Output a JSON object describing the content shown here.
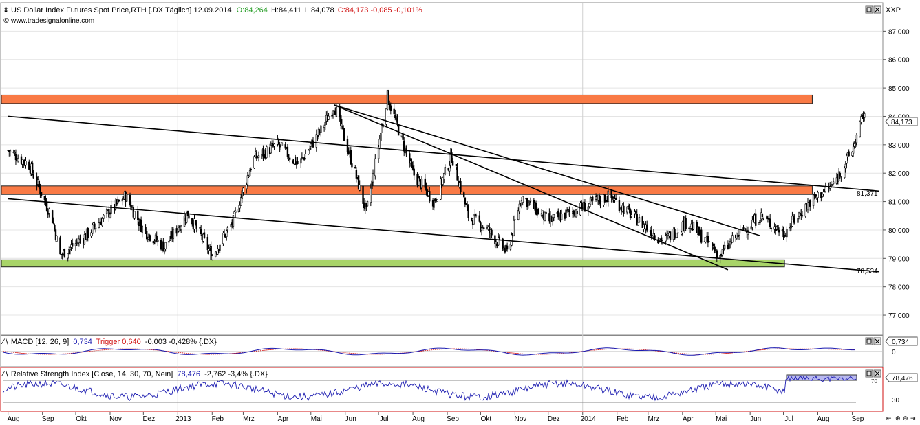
{
  "main_panel": {
    "title": "US Dollar Index Futures Spot Price,RTH [.DX  Täglich] 12.09.2014",
    "open": "O:84,264",
    "high": "H:84,411",
    "low": "L:84,078",
    "close": "C:84,173 -0,085 -0,101%",
    "watermark": "www.tradesignalonline.com",
    "axis_label": "XXP",
    "last_price_label": "84,173",
    "line_label_upper": "81,371",
    "line_label_lower": "78,534"
  },
  "macd_panel": {
    "title_prefix": "MACD [12, 26, 9]",
    "macd_value": "0,734",
    "trigger_text": "Trigger 0,640",
    "rest": "-0,003 -0,428% {.DX}",
    "axis_value": "0,734",
    "zero_label": "0"
  },
  "rsi_panel": {
    "title_prefix": "Relative Strength Index [Close, 14, 30, 70, Nein]",
    "value": "78,476",
    "rest": "-2,762 -3,4% {.DX}",
    "axis_value": "78,476",
    "level_70": "70",
    "level_30": "30"
  },
  "colors": {
    "resistance_zone": "#f97a45",
    "support_zone": "#a8d468",
    "candles": "#000000",
    "macd_line": "#1a1ab0",
    "rsi_line": "#1a1ab0",
    "panel_border_red": "#d01010"
  },
  "chart_data": {
    "type": "candlestick",
    "title": "US Dollar Index Futures Spot Price,RTH [.DX  Täglich] 12.09.2014",
    "ylim": [
      76.3,
      88.0
    ],
    "y_ticks": [
      "77,000",
      "78,000",
      "79,000",
      "80,000",
      "81,000",
      "82,000",
      "83,000",
      "84,000",
      "85,000",
      "86,000",
      "87,000"
    ],
    "x_ticks": [
      "Aug",
      "Sep",
      "Okt",
      "Nov",
      "Dez",
      "2013",
      "Feb",
      "Mrz",
      "Apr",
      "Mai",
      "Jun",
      "Jul",
      "Aug",
      "Sep",
      "Okt",
      "Nov",
      "Dez",
      "2014",
      "Feb",
      "Mrz",
      "Apr",
      "Mai",
      "Jun",
      "Jul",
      "Aug",
      "Sep"
    ],
    "approx_close_path": [
      {
        "date": "2012-08-01",
        "value": 82.8
      },
      {
        "date": "2012-08-20",
        "value": 82.3
      },
      {
        "date": "2012-09-10",
        "value": 80.4
      },
      {
        "date": "2012-09-17",
        "value": 79.1
      },
      {
        "date": "2012-10-10",
        "value": 79.8
      },
      {
        "date": "2012-11-15",
        "value": 81.2
      },
      {
        "date": "2012-12-01",
        "value": 80.0
      },
      {
        "date": "2012-12-20",
        "value": 79.4
      },
      {
        "date": "2013-01-10",
        "value": 80.6
      },
      {
        "date": "2013-02-01",
        "value": 79.1
      },
      {
        "date": "2013-02-20",
        "value": 80.3
      },
      {
        "date": "2013-03-10",
        "value": 82.5
      },
      {
        "date": "2013-04-01",
        "value": 83.0
      },
      {
        "date": "2013-04-20",
        "value": 82.3
      },
      {
        "date": "2013-05-10",
        "value": 83.5
      },
      {
        "date": "2013-05-22",
        "value": 84.4
      },
      {
        "date": "2013-06-10",
        "value": 82.0
      },
      {
        "date": "2013-06-20",
        "value": 80.6
      },
      {
        "date": "2013-07-09",
        "value": 84.7
      },
      {
        "date": "2013-08-01",
        "value": 82.0
      },
      {
        "date": "2013-08-20",
        "value": 81.0
      },
      {
        "date": "2013-09-05",
        "value": 82.6
      },
      {
        "date": "2013-09-20",
        "value": 80.5
      },
      {
        "date": "2013-10-05",
        "value": 80.1
      },
      {
        "date": "2013-10-25",
        "value": 79.2
      },
      {
        "date": "2013-11-07",
        "value": 81.2
      },
      {
        "date": "2013-12-01",
        "value": 80.3
      },
      {
        "date": "2014-01-01",
        "value": 80.8
      },
      {
        "date": "2014-01-25",
        "value": 81.2
      },
      {
        "date": "2014-02-15",
        "value": 80.5
      },
      {
        "date": "2014-03-15",
        "value": 79.6
      },
      {
        "date": "2014-04-05",
        "value": 80.3
      },
      {
        "date": "2014-05-05",
        "value": 79.1
      },
      {
        "date": "2014-05-20",
        "value": 79.8
      },
      {
        "date": "2014-06-10",
        "value": 80.5
      },
      {
        "date": "2014-07-01",
        "value": 79.9
      },
      {
        "date": "2014-07-25",
        "value": 81.0
      },
      {
        "date": "2014-08-15",
        "value": 81.6
      },
      {
        "date": "2014-09-01",
        "value": 82.8
      },
      {
        "date": "2014-09-12",
        "value": 84.17
      }
    ],
    "zones": [
      {
        "name": "resistance-upper",
        "y_from": 84.45,
        "y_to": 84.75
      },
      {
        "name": "resistance-middle",
        "y_from": 81.25,
        "y_to": 81.55
      },
      {
        "name": "support",
        "y_from": 78.7,
        "y_to": 78.95
      }
    ],
    "trendlines": [
      {
        "from": [
          "2012-08-01",
          84.0
        ],
        "to": [
          "2014-09-25",
          81.37
        ],
        "label": "81,371"
      },
      {
        "from": [
          "2012-08-01",
          81.1
        ],
        "to": [
          "2014-09-25",
          78.53
        ],
        "label": "78,534"
      },
      {
        "from": [
          "2013-05-22",
          84.4
        ],
        "to": [
          "2014-05-12",
          78.6
        ]
      },
      {
        "from": [
          "2013-05-22",
          84.4
        ],
        "to": [
          "2014-06-10",
          79.8
        ]
      }
    ],
    "macd": {
      "value": 0.734,
      "trigger": 0.64
    },
    "rsi": {
      "value": 78.476,
      "levels": [
        30,
        70
      ]
    }
  }
}
